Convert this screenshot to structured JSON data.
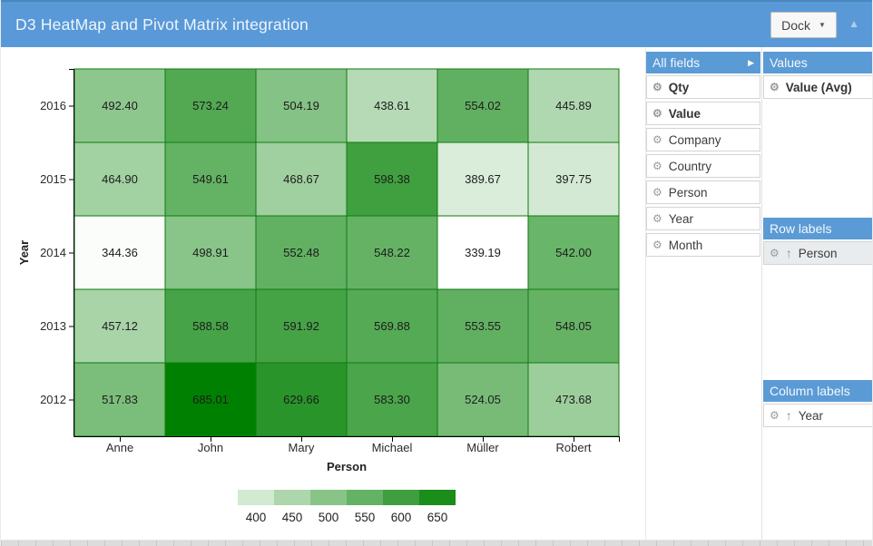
{
  "header": {
    "title": "D3 HeatMap and Pivot Matrix integration",
    "dock_button": "Dock"
  },
  "icons": {
    "gear": "⚙",
    "sort_ascending": "↑",
    "expand_arrow": "▶",
    "dropdown_caret": "▼",
    "collapse_caret": "▲"
  },
  "colors": {
    "titlebar_blue": "#5a99d8",
    "panel_header_blue": "#5b9bd5",
    "cell_border_green": "#0e7c0e",
    "axis_black": "#000000",
    "selected_field_bg": "#e9ecef",
    "scale_min_color": "#ffffff",
    "scale_max_color": "#008000"
  },
  "chart_data": {
    "type": "heatmap",
    "x_categories": [
      "Anne",
      "John",
      "Mary",
      "Michael",
      "Müller",
      "Robert"
    ],
    "y_categories": [
      "2016",
      "2015",
      "2014",
      "2013",
      "2012"
    ],
    "xlabel": "Person",
    "ylabel": "Year",
    "values": [
      [
        492.4,
        573.24,
        504.19,
        438.61,
        554.02,
        445.89
      ],
      [
        464.9,
        549.61,
        468.67,
        598.38,
        389.67,
        397.75
      ],
      [
        344.36,
        498.91,
        552.48,
        548.22,
        339.19,
        542.0
      ],
      [
        457.12,
        588.58,
        591.92,
        569.88,
        553.55,
        548.05
      ],
      [
        517.83,
        685.01,
        629.66,
        583.3,
        524.05,
        473.68
      ]
    ],
    "legend_ticks": [
      400,
      450,
      500,
      550,
      600,
      650
    ],
    "color_scale": {
      "min_value": 339.19,
      "max_value": 685.01,
      "min_color": "#ffffff",
      "max_color": "#008000"
    }
  },
  "pivot": {
    "all_fields": {
      "title": "All fields",
      "items": [
        {
          "label": "Qty",
          "bold": true
        },
        {
          "label": "Value",
          "bold": true
        },
        {
          "label": "Company"
        },
        {
          "label": "Country"
        },
        {
          "label": "Person"
        },
        {
          "label": "Year"
        },
        {
          "label": "Month"
        }
      ]
    },
    "values": {
      "title": "Values",
      "items": [
        {
          "label": "Value (Avg)",
          "bold": true
        }
      ]
    },
    "row_labels": {
      "title": "Row labels",
      "items": [
        {
          "label": "Person",
          "sorted": true,
          "highlight": true
        }
      ]
    },
    "column_labels": {
      "title": "Column labels",
      "items": [
        {
          "label": "Year",
          "sorted": true
        }
      ]
    }
  }
}
